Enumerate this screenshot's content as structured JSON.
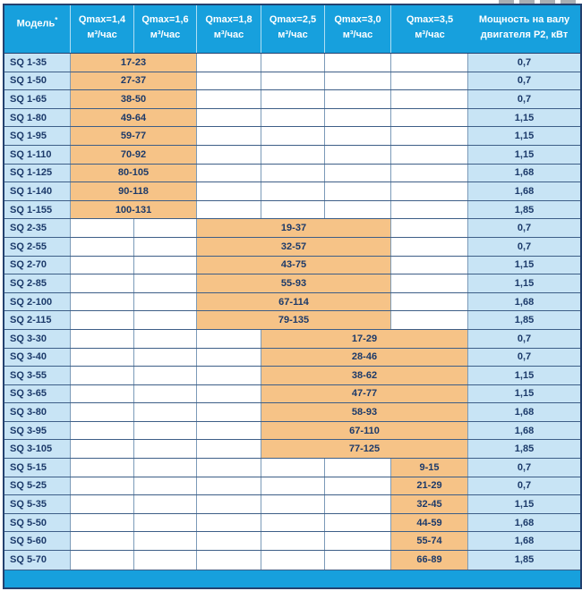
{
  "table": {
    "model_header": {
      "label": "Модель",
      "sup": "*"
    },
    "q_headers": [
      {
        "label": "Qmax=1,4",
        "unit": "м³/час"
      },
      {
        "label": "Qmax=1,6",
        "unit": "м³/час"
      },
      {
        "label": "Qmax=1,8",
        "unit": "м³/час"
      },
      {
        "label": "Qmax=2,5",
        "unit": "м³/час"
      },
      {
        "label": "Qmax=3,0",
        "unit": "м³/час"
      },
      {
        "label": "Qmax=3,5",
        "unit": "м³/час"
      }
    ],
    "power_header": {
      "line1": "Мощность на валу",
      "line2": "двигателя P2, кВт"
    },
    "rows": [
      {
        "model": "SQ 1-35",
        "range": "17-23",
        "span": {
          "from": 1,
          "to": 2
        },
        "p2": "0,7"
      },
      {
        "model": "SQ 1-50",
        "range": "27-37",
        "span": {
          "from": 1,
          "to": 2
        },
        "p2": "0,7"
      },
      {
        "model": "SQ 1-65",
        "range": "38-50",
        "span": {
          "from": 1,
          "to": 2
        },
        "p2": "0,7"
      },
      {
        "model": "SQ 1-80",
        "range": "49-64",
        "span": {
          "from": 1,
          "to": 2
        },
        "p2": "1,15"
      },
      {
        "model": "SQ 1-95",
        "range": "59-77",
        "span": {
          "from": 1,
          "to": 2
        },
        "p2": "1,15"
      },
      {
        "model": "SQ 1-110",
        "range": "70-92",
        "span": {
          "from": 1,
          "to": 2
        },
        "p2": "1,15"
      },
      {
        "model": "SQ 1-125",
        "range": "80-105",
        "span": {
          "from": 1,
          "to": 2
        },
        "p2": "1,68"
      },
      {
        "model": "SQ 1-140",
        "range": "90-118",
        "span": {
          "from": 1,
          "to": 2
        },
        "p2": "1,68"
      },
      {
        "model": "SQ 1-155",
        "range": "100-131",
        "span": {
          "from": 1,
          "to": 2
        },
        "p2": "1,85"
      },
      {
        "model": "SQ 2-35",
        "range": "19-37",
        "span": {
          "from": 3,
          "to": 5
        },
        "p2": "0,7"
      },
      {
        "model": "SQ 2-55",
        "range": "32-57",
        "span": {
          "from": 3,
          "to": 5
        },
        "p2": "0,7"
      },
      {
        "model": "SQ 2-70",
        "range": "43-75",
        "span": {
          "from": 3,
          "to": 5
        },
        "p2": "1,15"
      },
      {
        "model": "SQ 2-85",
        "range": "55-93",
        "span": {
          "from": 3,
          "to": 5
        },
        "p2": "1,15"
      },
      {
        "model": "SQ 2-100",
        "range": "67-114",
        "span": {
          "from": 3,
          "to": 5
        },
        "p2": "1,68"
      },
      {
        "model": "SQ 2-115",
        "range": "79-135",
        "span": {
          "from": 3,
          "to": 5
        },
        "p2": "1,85"
      },
      {
        "model": "SQ 3-30",
        "range": "17-29",
        "span": {
          "from": 4,
          "to": 6
        },
        "p2": "0,7"
      },
      {
        "model": "SQ 3-40",
        "range": "28-46",
        "span": {
          "from": 4,
          "to": 6
        },
        "p2": "0,7"
      },
      {
        "model": "SQ 3-55",
        "range": "38-62",
        "span": {
          "from": 4,
          "to": 6
        },
        "p2": "1,15"
      },
      {
        "model": "SQ 3-65",
        "range": "47-77",
        "span": {
          "from": 4,
          "to": 6
        },
        "p2": "1,15"
      },
      {
        "model": "SQ 3-80",
        "range": "58-93",
        "span": {
          "from": 4,
          "to": 6
        },
        "p2": "1,68"
      },
      {
        "model": "SQ 3-95",
        "range": "67-110",
        "span": {
          "from": 4,
          "to": 6
        },
        "p2": "1,68"
      },
      {
        "model": "SQ 3-105",
        "range": "77-125",
        "span": {
          "from": 4,
          "to": 6
        },
        "p2": "1,85"
      },
      {
        "model": "SQ 5-15",
        "range": "9-15",
        "span": {
          "from": 6,
          "to": 6
        },
        "p2": "0,7"
      },
      {
        "model": "SQ 5-25",
        "range": "21-29",
        "span": {
          "from": 6,
          "to": 6
        },
        "p2": "0,7"
      },
      {
        "model": "SQ 5-35",
        "range": "32-45",
        "span": {
          "from": 6,
          "to": 6
        },
        "p2": "1,15"
      },
      {
        "model": "SQ 5-50",
        "range": "44-59",
        "span": {
          "from": 6,
          "to": 6
        },
        "p2": "1,68"
      },
      {
        "model": "SQ 5-60",
        "range": "55-74",
        "span": {
          "from": 6,
          "to": 6
        },
        "p2": "1,68"
      },
      {
        "model": "SQ 5-70",
        "range": "66-89",
        "span": {
          "from": 6,
          "to": 6
        },
        "p2": "1,85"
      }
    ]
  },
  "colors": {
    "header_bg": "#17a0dd",
    "light_blue": "#c8e4f5",
    "orange": "#f6c387",
    "text_navy": "#1c3a6a",
    "grid_horizontal": "#3d5e87",
    "grid_vertical": "#7b9ab8",
    "outer_border": "#24416f"
  }
}
